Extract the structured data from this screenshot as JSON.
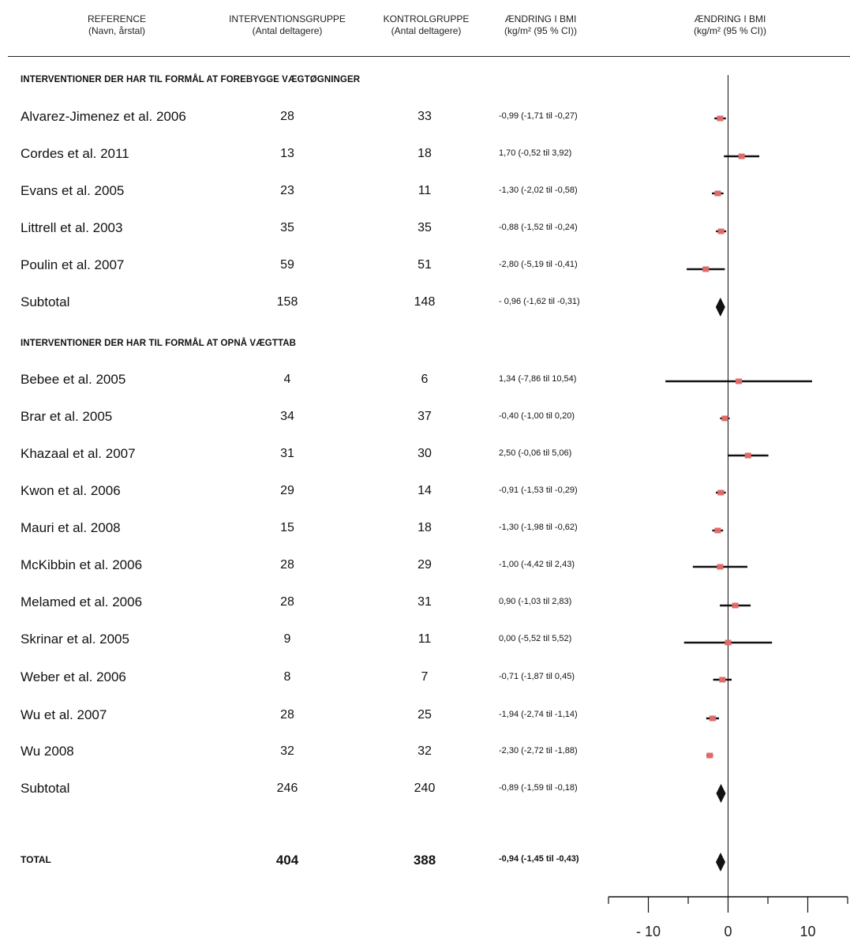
{
  "headers": {
    "reference": [
      "REFERENCE",
      "(Navn, årstal)"
    ],
    "intervention": [
      "INTERVENTIONSGRUPPE",
      "(Antal deltagere)"
    ],
    "control": [
      "KONTROLGRUPPE",
      "(Antal deltagere)"
    ],
    "change_text": [
      "ÆNDRING I BMI",
      "(kg/m² (95 % CI))"
    ],
    "change_plot": [
      "ÆNDRING I BMI",
      "(kg/m² (95 % CI))"
    ]
  },
  "sections": [
    {
      "title": "INTERVENTIONER DER HAR TIL FORMÅL AT FOREBYGGE VÆGTØGNINGER",
      "rows": [
        {
          "name": "Alvarez-Jimenez et al. 2006",
          "n1": "28",
          "n2": "33",
          "ci": "-0,99 (-1,71 til -0,27)"
        },
        {
          "name": "Cordes et al. 2011",
          "n1": "13",
          "n2": "18",
          "ci": "1,70 (-0,52 til 3,92)"
        },
        {
          "name": "Evans et al. 2005",
          "n1": "23",
          "n2": "11",
          "ci": "-1,30 (-2,02 til -0,58)"
        },
        {
          "name": "Littrell et al. 2003",
          "n1": "35",
          "n2": "35",
          "ci": "-0,88 (-1,52 til -0,24)"
        },
        {
          "name": "Poulin et al. 2007",
          "n1": "59",
          "n2": "51",
          "ci": "-2,80 (-5,19 til -0,41)"
        },
        {
          "name": "Subtotal",
          "n1": "158",
          "n2": "148",
          "ci": "- 0,96 (-1,62 til -0,31)"
        }
      ]
    },
    {
      "title": "INTERVENTIONER DER HAR TIL FORMÅL AT OPNÅ VÆGTTAB",
      "rows": [
        {
          "name": "Bebee et al. 2005",
          "n1": "4",
          "n2": "6",
          "ci": "1,34 (-7,86 til 10,54)"
        },
        {
          "name": "Brar et al. 2005",
          "n1": "34",
          "n2": "37",
          "ci": "-0,40 (-1,00 til 0,20)"
        },
        {
          "name": "Khazaal et al. 2007",
          "n1": "31",
          "n2": "30",
          "ci": "2,50 (-0,06 til 5,06)"
        },
        {
          "name": "Kwon et al. 2006",
          "n1": "29",
          "n2": "14",
          "ci": "-0,91 (-1,53 til -0,29)"
        },
        {
          "name": "Mauri et al. 2008",
          "n1": "15",
          "n2": "18",
          "ci": "-1,30 (-1,98 til -0,62)"
        },
        {
          "name": "McKibbin et al. 2006",
          "n1": "28",
          "n2": "29",
          "ci": "-1,00 (-4,42 til 2,43)"
        },
        {
          "name": "Melamed et al. 2006",
          "n1": "28",
          "n2": "31",
          "ci": "0,90 (-1,03 til 2,83)"
        },
        {
          "name": "Skrinar et al. 2005",
          "n1": "9",
          "n2": "11",
          "ci": "0,00 (-5,52 til 5,52)"
        },
        {
          "name": "Weber et al. 2006",
          "n1": "8",
          "n2": "7",
          "ci": "-0,71 (-1,87 til 0,45)"
        },
        {
          "name": "Wu et al. 2007",
          "n1": "28",
          "n2": "25",
          "ci": "-1,94 (-2,74 til -1,14)"
        },
        {
          "name": "Wu 2008",
          "n1": "32",
          "n2": "32",
          "ci": "-2,30 (-2,72 til -1,88)"
        },
        {
          "name": "Subtotal",
          "n1": "246",
          "n2": "240",
          "ci": "-0,89 (-1,59 til -0,18)"
        }
      ]
    }
  ],
  "total": {
    "name": "TOTAL",
    "n1": "404",
    "n2": "388",
    "ci": "-0,94 (-1,45 til -0,43)"
  },
  "colors": {
    "study_marker": "#e06a6a",
    "line": "#111111"
  },
  "chart_data": {
    "type": "forest",
    "xlim": [
      -15,
      15
    ],
    "x_ticks": [
      -10,
      0,
      10
    ],
    "x_tick_labels": [
      "- 10",
      "0",
      "10"
    ],
    "reference_line": 0,
    "studies": [
      {
        "group": 0,
        "estimate": -0.99,
        "lower": -1.71,
        "upper": -0.27,
        "kind": "study"
      },
      {
        "group": 0,
        "estimate": 1.7,
        "lower": -0.52,
        "upper": 3.92,
        "kind": "study"
      },
      {
        "group": 0,
        "estimate": -1.3,
        "lower": -2.02,
        "upper": -0.58,
        "kind": "study"
      },
      {
        "group": 0,
        "estimate": -0.88,
        "lower": -1.52,
        "upper": -0.24,
        "kind": "study"
      },
      {
        "group": 0,
        "estimate": -2.8,
        "lower": -5.19,
        "upper": -0.41,
        "kind": "study"
      },
      {
        "group": 0,
        "estimate": -0.96,
        "lower": -1.62,
        "upper": -0.31,
        "kind": "subtotal"
      },
      {
        "group": 1,
        "estimate": 1.34,
        "lower": -7.86,
        "upper": 10.54,
        "kind": "study"
      },
      {
        "group": 1,
        "estimate": -0.4,
        "lower": -1.0,
        "upper": 0.2,
        "kind": "study"
      },
      {
        "group": 1,
        "estimate": 2.5,
        "lower": -0.06,
        "upper": 5.06,
        "kind": "study"
      },
      {
        "group": 1,
        "estimate": -0.91,
        "lower": -1.53,
        "upper": -0.29,
        "kind": "study"
      },
      {
        "group": 1,
        "estimate": -1.3,
        "lower": -1.98,
        "upper": -0.62,
        "kind": "study"
      },
      {
        "group": 1,
        "estimate": -1.0,
        "lower": -4.42,
        "upper": 2.43,
        "kind": "study"
      },
      {
        "group": 1,
        "estimate": 0.9,
        "lower": -1.03,
        "upper": 2.83,
        "kind": "study"
      },
      {
        "group": 1,
        "estimate": 0.0,
        "lower": -5.52,
        "upper": 5.52,
        "kind": "study"
      },
      {
        "group": 1,
        "estimate": -0.71,
        "lower": -1.87,
        "upper": 0.45,
        "kind": "study"
      },
      {
        "group": 1,
        "estimate": -1.94,
        "lower": -2.74,
        "upper": -1.14,
        "kind": "study"
      },
      {
        "group": 1,
        "estimate": -2.3,
        "lower": -2.72,
        "upper": -1.88,
        "kind": "study"
      },
      {
        "group": 1,
        "estimate": -0.89,
        "lower": -1.59,
        "upper": -0.18,
        "kind": "subtotal"
      },
      {
        "group": 2,
        "estimate": -0.94,
        "lower": -1.45,
        "upper": -0.43,
        "kind": "total"
      }
    ]
  }
}
